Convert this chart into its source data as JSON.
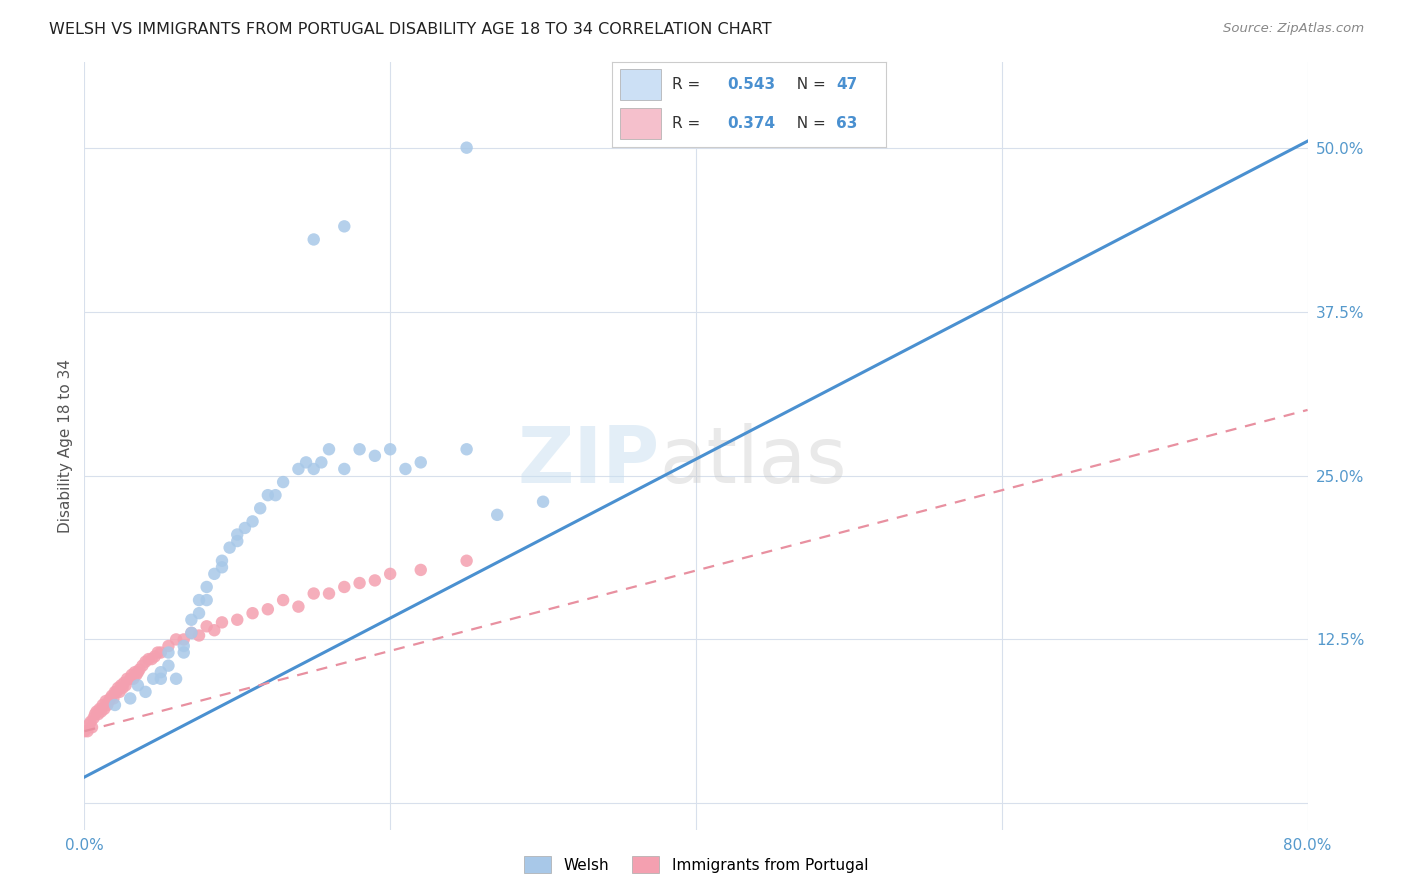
{
  "title": "WELSH VS IMMIGRANTS FROM PORTUGAL DISABILITY AGE 18 TO 34 CORRELATION CHART",
  "source": "Source: ZipAtlas.com",
  "ylabel": "Disability Age 18 to 34",
  "xlim": [
    0.0,
    0.8
  ],
  "ylim": [
    -0.02,
    0.565
  ],
  "ytick_positions": [
    0.0,
    0.125,
    0.25,
    0.375,
    0.5
  ],
  "ytick_labels": [
    "",
    "12.5%",
    "25.0%",
    "37.5%",
    "50.0%"
  ],
  "welsh_R": 0.543,
  "welsh_N": 47,
  "portugal_R": 0.374,
  "portugal_N": 63,
  "welsh_color": "#a8c8e8",
  "portugal_color": "#f4a0b0",
  "welsh_line_color": "#4a90d0",
  "portugal_line_color": "#e890a0",
  "legend_box_color": "#cce0f5",
  "legend_box_color2": "#f5c0cc",
  "background_color": "#ffffff",
  "grid_color": "#d8e0ec",
  "tick_color": "#5599cc",
  "welsh_x": [
    0.02,
    0.03,
    0.035,
    0.04,
    0.045,
    0.05,
    0.05,
    0.055,
    0.055,
    0.06,
    0.065,
    0.065,
    0.07,
    0.07,
    0.075,
    0.075,
    0.08,
    0.08,
    0.085,
    0.09,
    0.09,
    0.095,
    0.1,
    0.1,
    0.105,
    0.11,
    0.115,
    0.12,
    0.125,
    0.13,
    0.14,
    0.145,
    0.15,
    0.155,
    0.16,
    0.17,
    0.18,
    0.19,
    0.2,
    0.21,
    0.22,
    0.25,
    0.27,
    0.3,
    0.15,
    0.17,
    0.25
  ],
  "welsh_y": [
    0.075,
    0.08,
    0.09,
    0.085,
    0.095,
    0.1,
    0.095,
    0.105,
    0.115,
    0.095,
    0.115,
    0.12,
    0.13,
    0.14,
    0.145,
    0.155,
    0.155,
    0.165,
    0.175,
    0.18,
    0.185,
    0.195,
    0.2,
    0.205,
    0.21,
    0.215,
    0.225,
    0.235,
    0.235,
    0.245,
    0.255,
    0.26,
    0.255,
    0.26,
    0.27,
    0.255,
    0.27,
    0.265,
    0.27,
    0.255,
    0.26,
    0.27,
    0.22,
    0.23,
    0.43,
    0.44,
    0.5
  ],
  "portugal_x": [
    0.0,
    0.002,
    0.003,
    0.004,
    0.005,
    0.006,
    0.007,
    0.008,
    0.009,
    0.01,
    0.011,
    0.012,
    0.013,
    0.014,
    0.015,
    0.016,
    0.017,
    0.018,
    0.019,
    0.02,
    0.021,
    0.022,
    0.023,
    0.024,
    0.025,
    0.026,
    0.027,
    0.028,
    0.03,
    0.031,
    0.032,
    0.033,
    0.034,
    0.035,
    0.036,
    0.038,
    0.04,
    0.042,
    0.044,
    0.046,
    0.048,
    0.05,
    0.055,
    0.06,
    0.065,
    0.07,
    0.075,
    0.08,
    0.085,
    0.09,
    0.1,
    0.11,
    0.12,
    0.13,
    0.14,
    0.15,
    0.16,
    0.17,
    0.18,
    0.19,
    0.2,
    0.22,
    0.25
  ],
  "portugal_y": [
    0.055,
    0.055,
    0.06,
    0.062,
    0.058,
    0.065,
    0.068,
    0.07,
    0.068,
    0.072,
    0.07,
    0.075,
    0.072,
    0.078,
    0.075,
    0.078,
    0.08,
    0.082,
    0.08,
    0.085,
    0.085,
    0.088,
    0.085,
    0.09,
    0.088,
    0.092,
    0.09,
    0.095,
    0.095,
    0.098,
    0.095,
    0.1,
    0.098,
    0.1,
    0.102,
    0.105,
    0.108,
    0.11,
    0.11,
    0.112,
    0.115,
    0.115,
    0.12,
    0.125,
    0.125,
    0.13,
    0.128,
    0.135,
    0.132,
    0.138,
    0.14,
    0.145,
    0.148,
    0.155,
    0.15,
    0.16,
    0.16,
    0.165,
    0.168,
    0.17,
    0.175,
    0.178,
    0.185
  ],
  "welsh_line_x0": 0.0,
  "welsh_line_y0": 0.02,
  "welsh_line_x1": 0.8,
  "welsh_line_y1": 0.505,
  "portugal_line_x0": 0.0,
  "portugal_line_y0": 0.055,
  "portugal_line_x1": 0.8,
  "portugal_line_y1": 0.3
}
